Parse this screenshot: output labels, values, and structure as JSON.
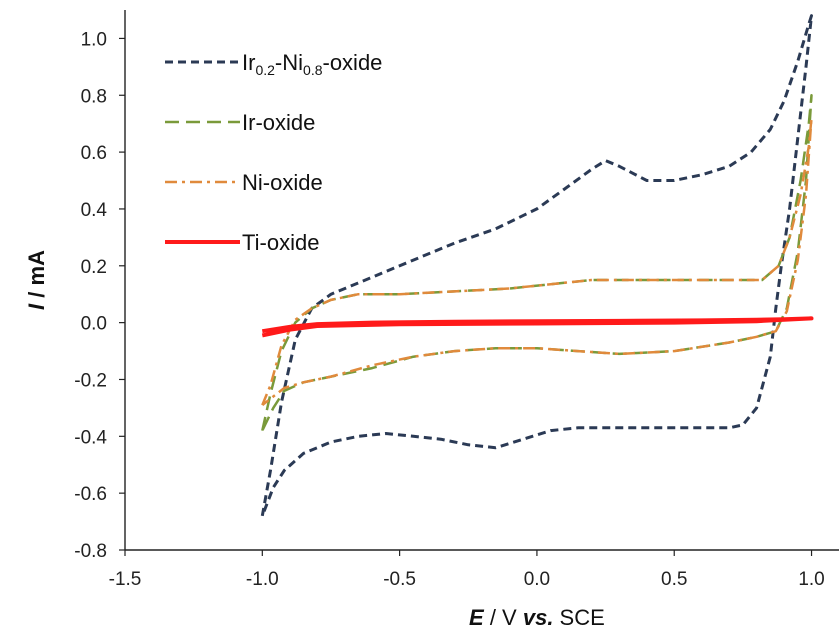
{
  "chart_data": {
    "type": "line",
    "title": "",
    "xlim": [
      -1.5,
      1.1
    ],
    "ylim": [
      -0.8,
      1.1
    ],
    "xticks": [
      -1.5,
      -1.0,
      -0.5,
      0.0,
      0.5,
      1.0
    ],
    "xtick_labels": [
      "-1.5",
      "-1.0",
      "-0.5",
      "0.0",
      "0.5",
      "1.0"
    ],
    "yticks": [
      -0.8,
      -0.6,
      -0.4,
      -0.2,
      0.0,
      0.2,
      0.4,
      0.6,
      0.8,
      1.0
    ],
    "ytick_labels": [
      "-0.8",
      "-0.6",
      "-0.4",
      "-0.2",
      "0.0",
      "0.2",
      "0.4",
      "0.6",
      "0.8",
      "1.0"
    ],
    "xlabel": {
      "italic": "E",
      "rest": " / V ",
      "vs": "vs.",
      "unit": " SCE"
    },
    "ylabel": {
      "italic": "I",
      "rest": " / mA"
    },
    "grid": false,
    "legend_position": "top-left",
    "series": [
      {
        "name": "Ir0.2-Ni0.8-oxide",
        "name_parts": [
          {
            "t": "Ir",
            "sub": false
          },
          {
            "t": "0.2",
            "sub": true
          },
          {
            "t": "-Ni",
            "sub": false
          },
          {
            "t": "0.8",
            "sub": true
          },
          {
            "t": "-oxide",
            "sub": false
          }
        ],
        "color": "#2b3a55",
        "dash": "short-dash",
        "x": [
          -1.0,
          -0.97,
          -0.93,
          -0.88,
          -0.82,
          -0.75,
          -0.6,
          -0.45,
          -0.3,
          -0.15,
          0.0,
          0.1,
          0.2,
          0.25,
          0.3,
          0.4,
          0.5,
          0.6,
          0.7,
          0.78,
          0.85,
          0.9,
          0.95,
          0.99,
          1.0,
          0.98,
          0.95,
          0.92,
          0.89,
          0.87,
          0.85,
          0.8,
          0.75,
          0.7,
          0.5,
          0.3,
          0.15,
          0.05,
          -0.05,
          -0.15,
          -0.25,
          -0.35,
          -0.45,
          -0.55,
          -0.65,
          -0.75,
          -0.85,
          -0.92,
          -0.96,
          -1.0
        ],
        "y": [
          -0.68,
          -0.52,
          -0.28,
          -0.06,
          0.05,
          0.1,
          0.16,
          0.22,
          0.28,
          0.33,
          0.4,
          0.47,
          0.54,
          0.57,
          0.55,
          0.5,
          0.5,
          0.52,
          0.55,
          0.6,
          0.68,
          0.78,
          0.92,
          1.05,
          1.08,
          0.9,
          0.65,
          0.4,
          0.2,
          0.05,
          -0.12,
          -0.3,
          -0.36,
          -0.37,
          -0.37,
          -0.37,
          -0.37,
          -0.38,
          -0.41,
          -0.44,
          -0.43,
          -0.41,
          -0.4,
          -0.39,
          -0.4,
          -0.42,
          -0.46,
          -0.52,
          -0.58,
          -0.68
        ]
      },
      {
        "name": "Ir-oxide",
        "color": "#7a9a3a",
        "dash": "long-dash",
        "x": [
          -1.0,
          -0.97,
          -0.93,
          -0.88,
          -0.82,
          -0.75,
          -0.65,
          -0.5,
          -0.3,
          -0.1,
          0.1,
          0.2,
          0.3,
          0.5,
          0.7,
          0.82,
          0.88,
          0.92,
          0.96,
          0.99,
          1.0,
          0.98,
          0.95,
          0.91,
          0.87,
          0.8,
          0.7,
          0.5,
          0.3,
          0.15,
          0.0,
          -0.15,
          -0.3,
          -0.45,
          -0.6,
          -0.75,
          -0.85,
          -0.92,
          -0.96,
          -1.0
        ],
        "y": [
          -0.38,
          -0.25,
          -0.1,
          0.0,
          0.05,
          0.08,
          0.1,
          0.1,
          0.11,
          0.12,
          0.14,
          0.15,
          0.15,
          0.15,
          0.15,
          0.15,
          0.2,
          0.3,
          0.5,
          0.7,
          0.8,
          0.5,
          0.25,
          0.05,
          -0.03,
          -0.05,
          -0.07,
          -0.1,
          -0.11,
          -0.1,
          -0.09,
          -0.09,
          -0.1,
          -0.12,
          -0.16,
          -0.19,
          -0.21,
          -0.24,
          -0.3,
          -0.38
        ]
      },
      {
        "name": "Ni-oxide",
        "color": "#e08a3c",
        "dash": "dash-dot",
        "x": [
          -1.0,
          -0.97,
          -0.93,
          -0.88,
          -0.82,
          -0.75,
          -0.65,
          -0.5,
          -0.3,
          -0.1,
          0.1,
          0.2,
          0.3,
          0.5,
          0.7,
          0.82,
          0.88,
          0.92,
          0.96,
          0.99,
          1.0,
          0.98,
          0.95,
          0.91,
          0.87,
          0.8,
          0.7,
          0.5,
          0.3,
          0.15,
          0.0,
          -0.15,
          -0.3,
          -0.45,
          -0.6,
          -0.75,
          -0.85,
          -0.92,
          -0.96,
          -1.0
        ],
        "y": [
          -0.29,
          -0.22,
          -0.08,
          0.01,
          0.05,
          0.08,
          0.1,
          0.1,
          0.11,
          0.12,
          0.14,
          0.15,
          0.15,
          0.15,
          0.15,
          0.15,
          0.2,
          0.3,
          0.45,
          0.62,
          0.72,
          0.45,
          0.22,
          0.04,
          -0.03,
          -0.05,
          -0.07,
          -0.1,
          -0.11,
          -0.1,
          -0.09,
          -0.09,
          -0.1,
          -0.12,
          -0.15,
          -0.19,
          -0.21,
          -0.23,
          -0.26,
          -0.29
        ]
      },
      {
        "name": "Ti-oxide",
        "color": "#ff1a1a",
        "dash": "solid",
        "x": [
          -1.0,
          -0.9,
          -0.8,
          -0.6,
          -0.3,
          0.0,
          0.3,
          0.6,
          0.8,
          0.9,
          1.0,
          0.9,
          0.8,
          0.5,
          0.0,
          -0.5,
          -0.8,
          -0.9,
          -1.0
        ],
        "y": [
          -0.03,
          -0.015,
          -0.005,
          0.0,
          0.003,
          0.005,
          0.006,
          0.008,
          0.01,
          0.012,
          0.015,
          0.01,
          0.005,
          0.0,
          -0.003,
          -0.006,
          -0.012,
          -0.025,
          -0.045
        ]
      }
    ]
  }
}
